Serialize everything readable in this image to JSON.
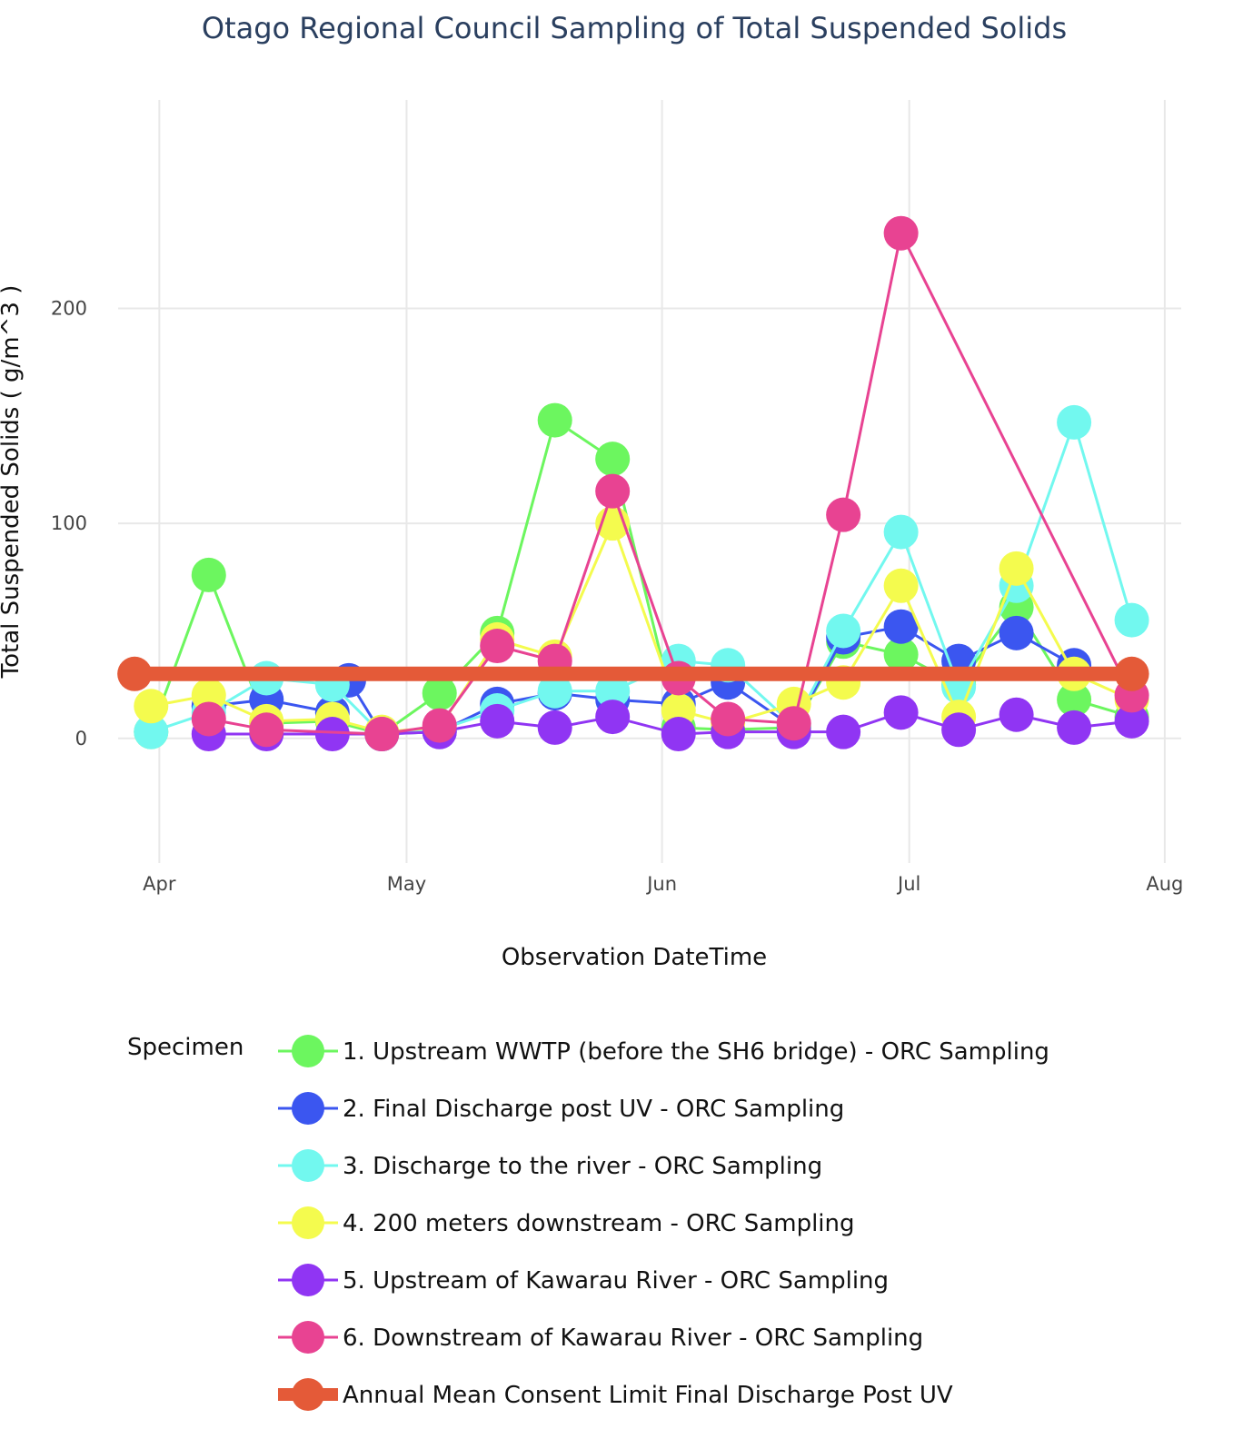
{
  "chart_data": {
    "type": "line",
    "title": "Otago Regional Council Sampling of Total Suspended Solids",
    "xlabel": "Observation DateTime",
    "ylabel": "Total Suspended Solids  ( g/m^3 )",
    "xlim": [
      "2023-03-27",
      "2023-08-03"
    ],
    "ylim": [
      -58,
      297
    ],
    "grid": true,
    "x_ticks": [
      {
        "date": "2023-04-01",
        "label": "Apr"
      },
      {
        "date": "2023-05-01",
        "label": "May"
      },
      {
        "date": "2023-06-01",
        "label": "Jun"
      },
      {
        "date": "2023-07-01",
        "label": "Jul"
      },
      {
        "date": "2023-08-01",
        "label": "Aug"
      }
    ],
    "y_ticks": [
      {
        "value": 0,
        "label": "0"
      },
      {
        "value": 100,
        "label": "100"
      },
      {
        "value": 200,
        "label": "200"
      }
    ],
    "legend_title": "Specimen",
    "legend_position": "bottom",
    "series": [
      {
        "name": "1. Upstream WWTP (before the SH6 bridge) - ORC Sampling",
        "color": "#6cf65f",
        "x": [
          "2023-03-31",
          "2023-04-07",
          "2023-04-14",
          "2023-04-22",
          "2023-04-28",
          "2023-05-05",
          "2023-05-12",
          "2023-05-19",
          "2023-05-26",
          "2023-06-03",
          "2023-06-09",
          "2023-06-17",
          "2023-06-23",
          "2023-06-30",
          "2023-07-07",
          "2023-07-14",
          "2023-07-21",
          "2023-07-28"
        ],
        "y": [
          3,
          76,
          7,
          8,
          2,
          21,
          49,
          148,
          130,
          5,
          4,
          5,
          45,
          39,
          25,
          61,
          18,
          10
        ]
      },
      {
        "name": "2. Final Discharge post UV - ORC Sampling",
        "color": "#3b56f0",
        "x": [
          "2023-04-07",
          "2023-04-14",
          "2023-04-22",
          "2023-04-24",
          "2023-04-28",
          "2023-05-05",
          "2023-05-12",
          "2023-05-19",
          "2023-05-26",
          "2023-06-03",
          "2023-06-09",
          "2023-06-17",
          "2023-06-23",
          "2023-06-30",
          "2023-07-07",
          "2023-07-14",
          "2023-07-21"
        ],
        "y": [
          15,
          18,
          12,
          27,
          2,
          3,
          16,
          21,
          18,
          16,
          26,
          5,
          47,
          52,
          36,
          49,
          34
        ]
      },
      {
        "name": "3. Discharge to the river - ORC Sampling",
        "color": "#72f8ef",
        "x": [
          "2023-03-31",
          "2023-04-07",
          "2023-04-14",
          "2023-04-22",
          "2023-04-28",
          "2023-05-05",
          "2023-05-12",
          "2023-05-19",
          "2023-05-26",
          "2023-06-03",
          "2023-06-09",
          "2023-06-17",
          "2023-06-23",
          "2023-06-30",
          "2023-07-07",
          "2023-07-14",
          "2023-07-21",
          "2023-07-28"
        ],
        "y": [
          3,
          12,
          28,
          25,
          2,
          4,
          13,
          22,
          22,
          36,
          34,
          6,
          50,
          96,
          24,
          71,
          147,
          55
        ]
      },
      {
        "name": "4. 200 meters downstream - ORC Sampling",
        "color": "#f4fb4e",
        "x": [
          "2023-03-31",
          "2023-04-07",
          "2023-04-14",
          "2023-04-22",
          "2023-04-28",
          "2023-05-05",
          "2023-05-12",
          "2023-05-19",
          "2023-05-26",
          "2023-06-03",
          "2023-06-09",
          "2023-06-17",
          "2023-06-23",
          "2023-06-30",
          "2023-07-07",
          "2023-07-14",
          "2023-07-21",
          "2023-07-28"
        ],
        "y": [
          15,
          20,
          8,
          9,
          3,
          5,
          46,
          38,
          100,
          13,
          7,
          16,
          26,
          71,
          10,
          79,
          30,
          18
        ]
      },
      {
        "name": "5. Upstream of Kawarau River - ORC Sampling",
        "color": "#9035f3",
        "x": [
          "2023-04-07",
          "2023-04-14",
          "2023-04-22",
          "2023-04-28",
          "2023-05-05",
          "2023-05-12",
          "2023-05-19",
          "2023-05-26",
          "2023-06-03",
          "2023-06-09",
          "2023-06-17",
          "2023-06-23",
          "2023-06-30",
          "2023-07-07",
          "2023-07-14",
          "2023-07-21",
          "2023-07-28"
        ],
        "y": [
          2,
          2,
          2,
          2,
          3,
          8,
          5,
          10,
          2,
          3,
          3,
          3,
          12,
          4,
          11,
          5,
          8
        ]
      },
      {
        "name": "6. Downstream of Kawarau River - ORC Sampling",
        "color": "#e84392",
        "x": [
          "2023-04-07",
          "2023-04-14",
          "2023-04-28",
          "2023-05-05",
          "2023-05-12",
          "2023-05-19",
          "2023-05-26",
          "2023-06-03",
          "2023-06-09",
          "2023-06-17",
          "2023-06-23",
          "2023-06-30",
          "2023-07-28"
        ],
        "y": [
          9,
          4,
          2,
          6,
          43,
          36,
          115,
          28,
          9,
          7,
          104,
          235,
          20
        ]
      },
      {
        "name": "Annual Mean Consent Limit Final Discharge Post UV",
        "color": "#e45a38",
        "x": [
          "2023-03-29",
          "2023-07-28"
        ],
        "y": [
          30,
          30
        ],
        "thick": true
      }
    ]
  }
}
